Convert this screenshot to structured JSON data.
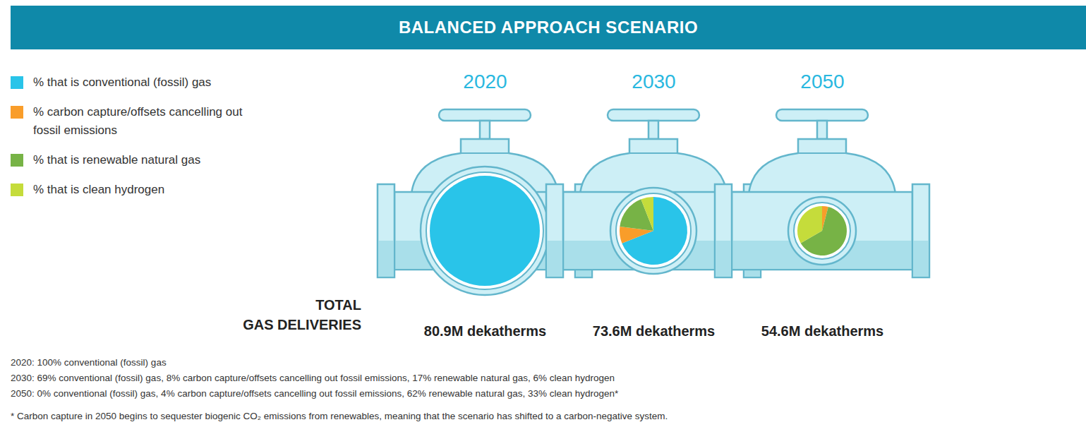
{
  "chart_data": {
    "type": "pie",
    "title": "BALANCED APPROACH SCENARIO",
    "categories": [
      "2020",
      "2030",
      "2050"
    ],
    "series": [
      {
        "name": "% that is conventional (fossil) gas",
        "color": "#29c4e9",
        "values": [
          100,
          69,
          0
        ]
      },
      {
        "name": "% carbon capture/offsets cancelling out fossil emissions",
        "color": "#f99d2a",
        "values": [
          0,
          8,
          4
        ]
      },
      {
        "name": "% that is renewable natural gas",
        "color": "#77b346",
        "values": [
          0,
          17,
          62
        ]
      },
      {
        "name": "% that is clean hydrogen",
        "color": "#c5dc3b",
        "values": [
          0,
          6,
          33
        ]
      }
    ],
    "legend": "top-left",
    "totals": {
      "label": "TOTAL GAS DELIVERIES",
      "labels": [
        "80.9M dekatherms",
        "73.6M dekatherms",
        "54.6M dekatherms"
      ]
    },
    "notes": [
      "2020: 100% conventional (fossil) gas",
      "2030: 69% conventional (fossil) gas, 8% carbon capture/offsets cancelling out fossil emissions, 17% renewable natural gas, 6% clean hydrogen",
      "2050: 0% conventional (fossil) gas, 4% carbon capture/offsets cancelling out fossil emissions, 62% renewable natural gas, 33% clean hydrogen*"
    ],
    "footnote": "* Carbon capture in 2050 begins to sequester biogenic CO₂ emissions from renewables, meaning that the scenario has shifted to a carbon-negative system."
  }
}
